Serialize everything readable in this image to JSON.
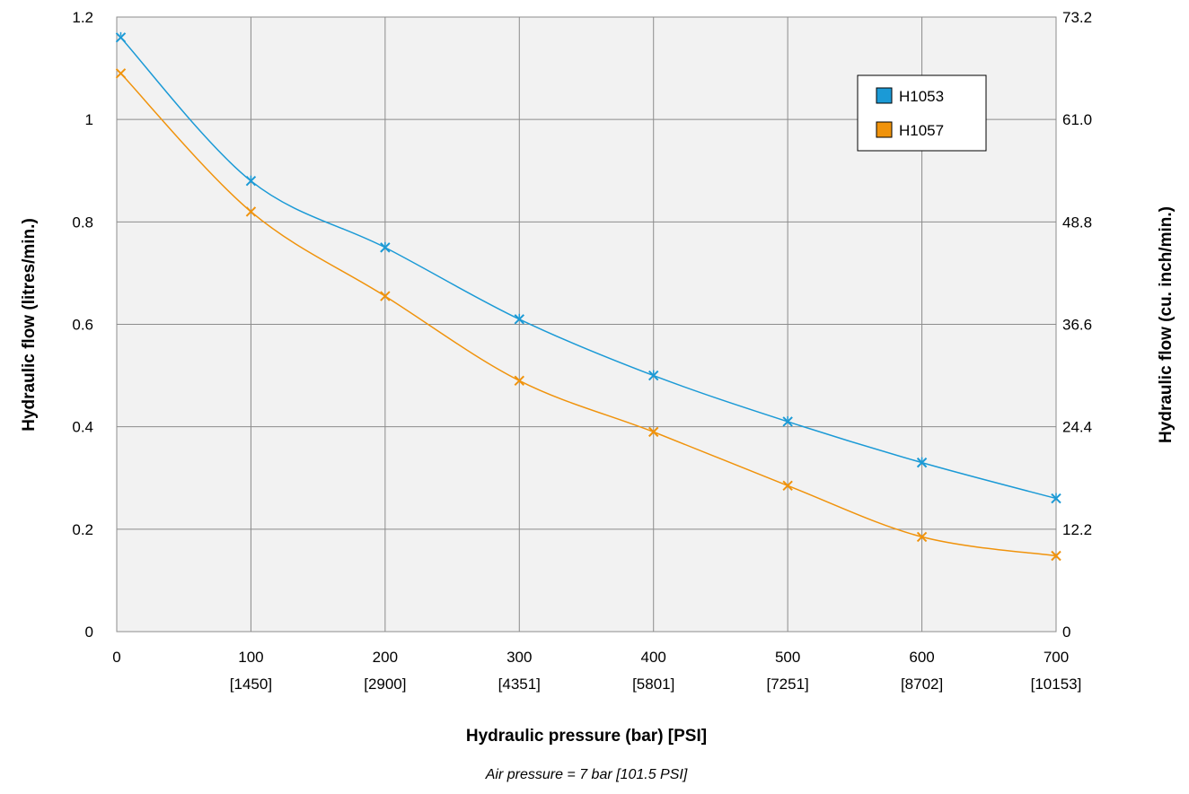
{
  "chart_data": {
    "type": "line",
    "xlabel": "Hydraulic pressure (bar) [PSI]",
    "ylabel": "Hydraulic flow (litres/min.)",
    "y2label": "Hydraulic flow (cu. inch/min.)",
    "note": "Air pressure = 7 bar [101.5 PSI]",
    "xlim": [
      0,
      700
    ],
    "ylim": [
      0,
      1.2
    ],
    "x_ticks": [
      "0",
      "100",
      "200",
      "300",
      "400",
      "500",
      "600",
      "700"
    ],
    "x_ticks_psi": [
      "",
      "[1450]",
      "[2900]",
      "[4351]",
      "[5801]",
      "[7251]",
      "[8702]",
      "[10153]"
    ],
    "y_ticks": [
      "0",
      "0.2",
      "0.4",
      "0.6",
      "0.8",
      "1",
      "1.2"
    ],
    "y2_ticks": [
      "0",
      "12.2",
      "24.4",
      "36.6",
      "48.8",
      "61.0",
      "73.2"
    ],
    "grid": true,
    "legend_position": "top-right",
    "series": [
      {
        "name": "H1053",
        "color": "#1b9ad6",
        "x": [
          3,
          100,
          200,
          300,
          400,
          500,
          600,
          700
        ],
        "values": [
          1.16,
          0.88,
          0.75,
          0.61,
          0.5,
          0.41,
          0.33,
          0.26
        ]
      },
      {
        "name": "H1057",
        "color": "#f0930c",
        "x": [
          3,
          100,
          200,
          300,
          400,
          500,
          600,
          700
        ],
        "values": [
          1.09,
          0.82,
          0.655,
          0.49,
          0.39,
          0.285,
          0.185,
          0.148
        ]
      }
    ]
  }
}
